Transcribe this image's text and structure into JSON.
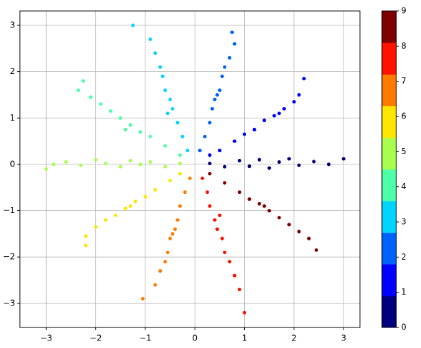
{
  "chart_data": {
    "type": "scatter",
    "xlim": [
      -3.53,
      3.33
    ],
    "ylim": [
      -3.52,
      3.31
    ],
    "xticks": [
      {
        "value": -3,
        "label": "−3"
      },
      {
        "value": -2,
        "label": "−2"
      },
      {
        "value": -1,
        "label": "−1"
      },
      0,
      1,
      2,
      3
    ],
    "yticks": [
      {
        "value": -3,
        "label": "−3"
      },
      {
        "value": -2,
        "label": "−2"
      },
      {
        "value": -1,
        "label": "−1"
      },
      0,
      1,
      2,
      3
    ],
    "grid": true,
    "series": [
      {
        "color": "#00007f",
        "x": [
          0.3,
          0.6,
          0.9,
          1.1,
          1.3,
          1.5,
          1.7,
          1.9,
          2.1,
          2.4,
          2.7,
          3.0
        ],
        "y": [
          0.02,
          -0.05,
          0.08,
          -0.04,
          0.1,
          -0.08,
          0.05,
          0.12,
          -0.02,
          0.06,
          0.0,
          0.12
        ]
      },
      {
        "color": "#0000ff",
        "x": [
          0.3,
          0.5,
          0.8,
          1.0,
          1.2,
          1.4,
          1.6,
          1.8,
          2.0,
          2.1,
          2.2,
          1.7
        ],
        "y": [
          0.2,
          0.3,
          0.5,
          0.65,
          0.75,
          0.95,
          1.05,
          1.2,
          1.35,
          1.5,
          1.85,
          1.1
        ]
      },
      {
        "color": "#0063ff",
        "x": [
          0.1,
          0.2,
          0.3,
          0.35,
          0.4,
          0.5,
          0.55,
          0.6,
          0.7,
          0.8,
          0.75,
          0.45
        ],
        "y": [
          0.3,
          0.6,
          0.9,
          1.2,
          1.4,
          1.6,
          1.9,
          2.1,
          2.3,
          2.6,
          2.85,
          1.5
        ]
      },
      {
        "color": "#00d4ff",
        "x": [
          -0.15,
          -0.25,
          -0.35,
          -0.45,
          -0.5,
          -0.6,
          -0.65,
          -0.7,
          -0.8,
          -0.9,
          -1.25,
          -0.55
        ],
        "y": [
          0.3,
          0.6,
          0.9,
          1.2,
          1.4,
          1.6,
          1.9,
          2.1,
          2.4,
          2.7,
          3.0,
          1.1
        ]
      },
      {
        "color": "#4effa9",
        "x": [
          -0.3,
          -0.6,
          -0.9,
          -1.1,
          -1.3,
          -1.5,
          -1.7,
          -1.9,
          -2.1,
          -2.35,
          -2.25,
          -1.4
        ],
        "y": [
          0.2,
          0.4,
          0.6,
          0.7,
          0.85,
          1.0,
          1.15,
          1.3,
          1.45,
          1.6,
          1.8,
          0.75
        ]
      },
      {
        "color": "#a9ff4e",
        "x": [
          -0.3,
          -0.6,
          -0.9,
          -1.1,
          -1.3,
          -1.5,
          -1.8,
          -2.0,
          -2.3,
          -2.6,
          -2.85,
          -3.0
        ],
        "y": [
          0.02,
          -0.05,
          0.05,
          0.0,
          0.08,
          -0.05,
          0.02,
          0.1,
          -0.02,
          0.05,
          0.0,
          -0.1
        ]
      },
      {
        "color": "#ffe600",
        "x": [
          -0.3,
          -0.5,
          -0.8,
          -1.0,
          -1.2,
          -1.4,
          -1.6,
          -1.8,
          -2.0,
          -2.2,
          -2.2,
          -1.3
        ],
        "y": [
          -0.2,
          -0.35,
          -0.55,
          -0.7,
          -0.8,
          -0.95,
          -1.1,
          -1.2,
          -1.35,
          -1.55,
          -1.75,
          -0.9
        ]
      },
      {
        "color": "#ff7b00",
        "x": [
          -0.1,
          -0.2,
          -0.3,
          -0.35,
          -0.4,
          -0.5,
          -0.55,
          -0.6,
          -0.7,
          -0.8,
          -1.05,
          -0.45
        ],
        "y": [
          -0.3,
          -0.6,
          -0.9,
          -1.2,
          -1.4,
          -1.6,
          -1.9,
          -2.1,
          -2.3,
          -2.6,
          -2.9,
          -1.5
        ]
      },
      {
        "color": "#ff1300",
        "x": [
          0.15,
          0.25,
          0.3,
          0.4,
          0.45,
          0.55,
          0.6,
          0.7,
          0.8,
          0.9,
          1.0,
          0.5
        ],
        "y": [
          -0.3,
          -0.6,
          -0.9,
          -1.2,
          -1.4,
          -1.6,
          -1.9,
          -2.1,
          -2.4,
          -2.7,
          -3.2,
          -1.1
        ]
      },
      {
        "color": "#7f0000",
        "x": [
          0.3,
          0.6,
          0.9,
          1.1,
          1.3,
          1.5,
          1.7,
          1.9,
          2.1,
          2.3,
          2.45,
          1.4
        ],
        "y": [
          -0.2,
          -0.4,
          -0.6,
          -0.75,
          -0.85,
          -1.0,
          -1.15,
          -1.3,
          -1.45,
          -1.6,
          -1.85,
          -0.9
        ]
      }
    ],
    "colorbar": {
      "lim": [
        0,
        9
      ],
      "ticks": [
        0,
        1,
        2,
        3,
        4,
        5,
        6,
        7,
        8,
        9
      ],
      "colors": [
        "#00007f",
        "#0000ff",
        "#0063ff",
        "#00d4ff",
        "#4effa9",
        "#a9ff4e",
        "#ffe600",
        "#ff7b00",
        "#ff1300",
        "#7f0000"
      ]
    }
  }
}
